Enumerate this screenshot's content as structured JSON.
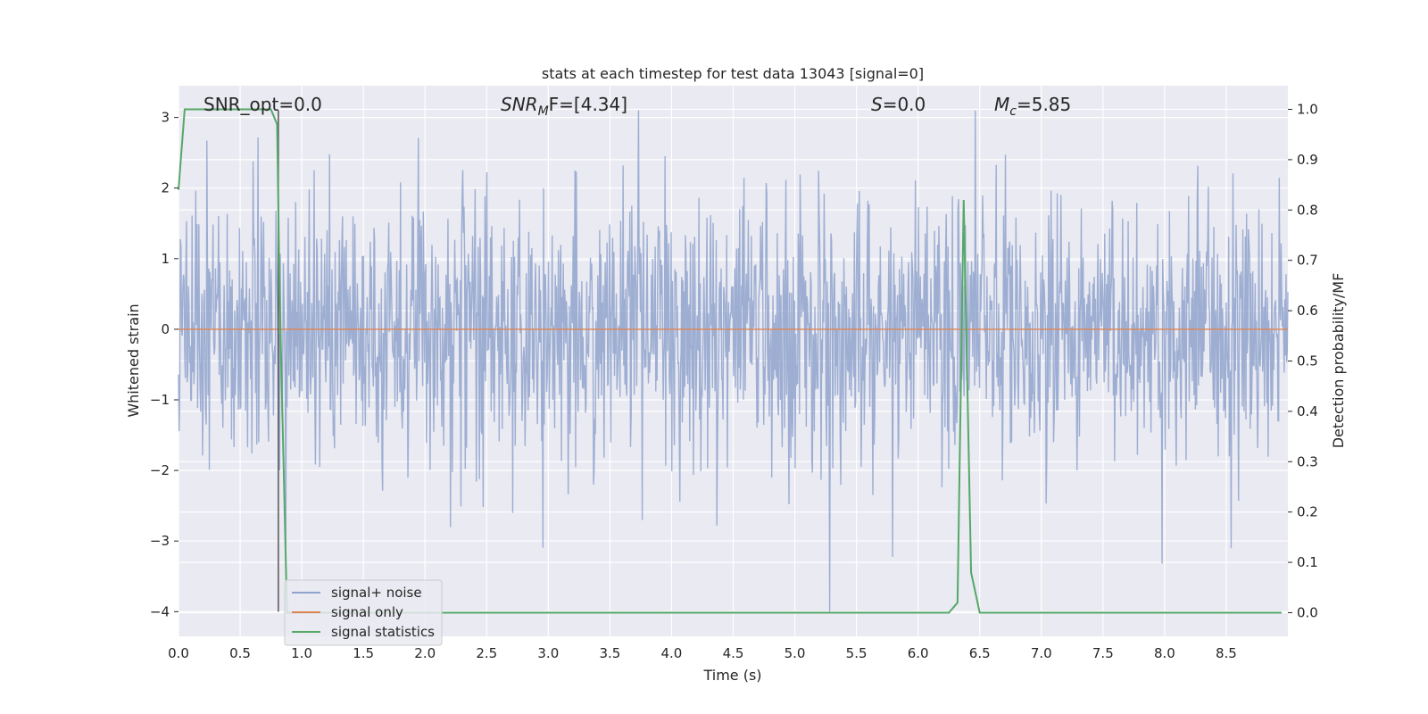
{
  "chart_data": {
    "type": "line",
    "title": "stats at each timestep for test data 13043 [signal=0]",
    "xlabel": "Time (s)",
    "ylabel": "Whitened strain",
    "y2label": "Detection probability/MF",
    "xlim": [
      0.0,
      9.0
    ],
    "ylim": [
      -4.35,
      3.45
    ],
    "y2lim": [
      -0.047,
      1.047
    ],
    "x_ticks": [
      "0.0",
      "0.5",
      "1.0",
      "1.5",
      "2.0",
      "2.5",
      "3.0",
      "3.5",
      "4.0",
      "4.5",
      "5.0",
      "5.5",
      "6.0",
      "6.5",
      "7.0",
      "7.5",
      "8.0",
      "8.5"
    ],
    "y_ticks": [
      "3",
      "2",
      "1",
      "0",
      "−1",
      "−2",
      "−3",
      "−4"
    ],
    "y2_ticks": [
      "1.0",
      "0.9",
      "0.8",
      "0.7",
      "0.6",
      "0.5",
      "0.4",
      "0.3",
      "0.2",
      "0.1",
      "0.0"
    ],
    "grid": true,
    "legend_position": "lower-left",
    "annotations": {
      "snr_opt": "SNR_opt=0.0",
      "snr_mf_main": "SNR",
      "snr_mf_sub": "M",
      "snr_mf_rest": "F=[4.34]",
      "s_main": "S",
      "s_rest": "=0.0",
      "mc_main": "M",
      "mc_sub": "c",
      "mc_rest": "=5.85"
    },
    "vertical_marker_x": 0.81,
    "series": [
      {
        "name": "signal+ noise",
        "color": "#8fa3cc",
        "description_values": "whitened noise, approximately Gaussian with standard deviation 1, duration 0-9 s",
        "sample_count": 1800,
        "seed": 13043
      },
      {
        "name": "signal only",
        "color": "#dd8452",
        "x": [
          0.0,
          9.0
        ],
        "y": [
          0.0,
          0.0
        ]
      },
      {
        "name": "signal statistics",
        "color": "#55a868",
        "axis": "right",
        "x": [
          0.0,
          0.05,
          0.1,
          0.75,
          0.8,
          0.82,
          0.88,
          6.25,
          6.32,
          6.37,
          6.43,
          6.5,
          8.95
        ],
        "y": [
          0.84,
          1.0,
          1.0,
          1.0,
          0.97,
          0.64,
          0.0,
          0.0,
          0.02,
          0.82,
          0.08,
          0.0,
          0.0
        ]
      }
    ]
  }
}
